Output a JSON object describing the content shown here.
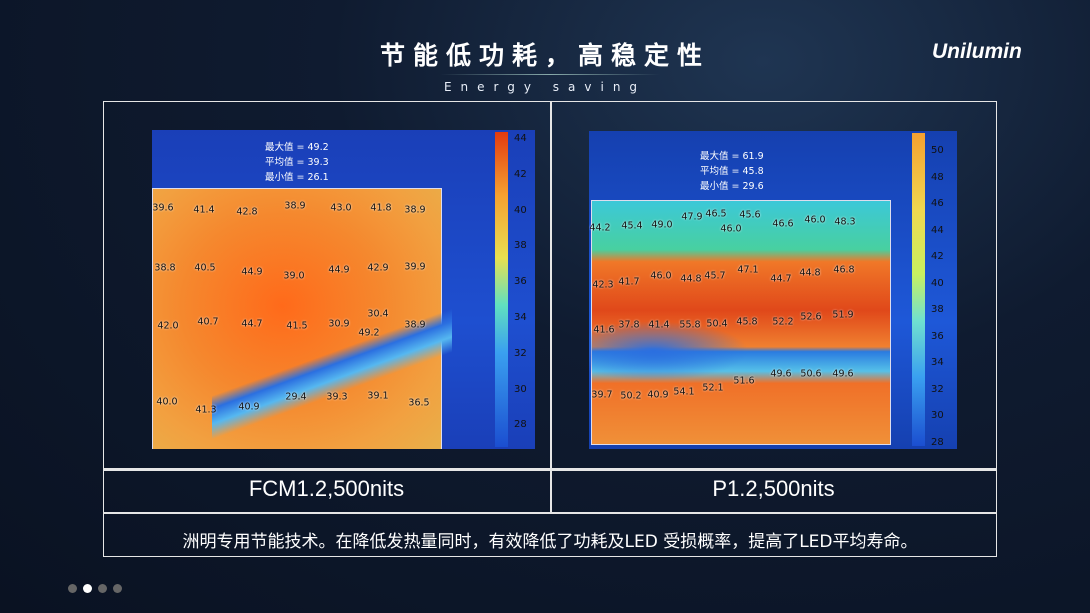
{
  "header": {
    "title": "节能低功耗，高稳定性",
    "subtitle": "Energy saving",
    "logo": "Unilumin"
  },
  "panels": [
    {
      "label": "FCM1.2,500nits",
      "stats": [
        "最大值 = 49.2",
        "平均值 = 39.3",
        "最小值 = 26.1"
      ],
      "scale": [
        "44",
        "42",
        "40",
        "38",
        "36",
        "34",
        "32",
        "30",
        "28"
      ],
      "spots": [
        "39.6",
        "41.4",
        "42.8",
        "38.9",
        "43.0",
        "41.8",
        "38.9",
        "38.8",
        "40.5",
        "44.9",
        "39.0",
        "44.9",
        "42.9",
        "39.9",
        "42.0",
        "40.7",
        "44.7",
        "41.5",
        "30.9",
        "30.4",
        "49.2",
        "38.9",
        "40.0",
        "41.3",
        "40.9",
        "29.4",
        "39.3",
        "39.1",
        "36.5"
      ]
    },
    {
      "label": "P1.2,500nits",
      "stats": [
        "最大值 = 61.9",
        "平均值 = 45.8",
        "最小值 = 29.6"
      ],
      "scale": [
        "50",
        "48",
        "46",
        "44",
        "42",
        "40",
        "38",
        "36",
        "34",
        "32",
        "30",
        "28"
      ],
      "spots": [
        "44.2",
        "45.4",
        "49.0",
        "47.9",
        "46.5",
        "46.0",
        "45.6",
        "46.6",
        "46.0",
        "48.3",
        "42.3",
        "41.7",
        "46.0",
        "44.8",
        "45.7",
        "47.1",
        "44.7",
        "44.8",
        "46.8",
        "41.6",
        "37.8",
        "41.4",
        "55.8",
        "50.4",
        "45.8",
        "52.2",
        "52.6",
        "51.9",
        "39.7",
        "50.2",
        "40.9",
        "54.1",
        "52.1",
        "51.6",
        "49.6",
        "50.6",
        "49.6"
      ]
    }
  ],
  "caption": "洲明专用节能技术。在降低发热量同时，有效降低了功耗及LED 受损概率，提高了LED平均寿命。"
}
